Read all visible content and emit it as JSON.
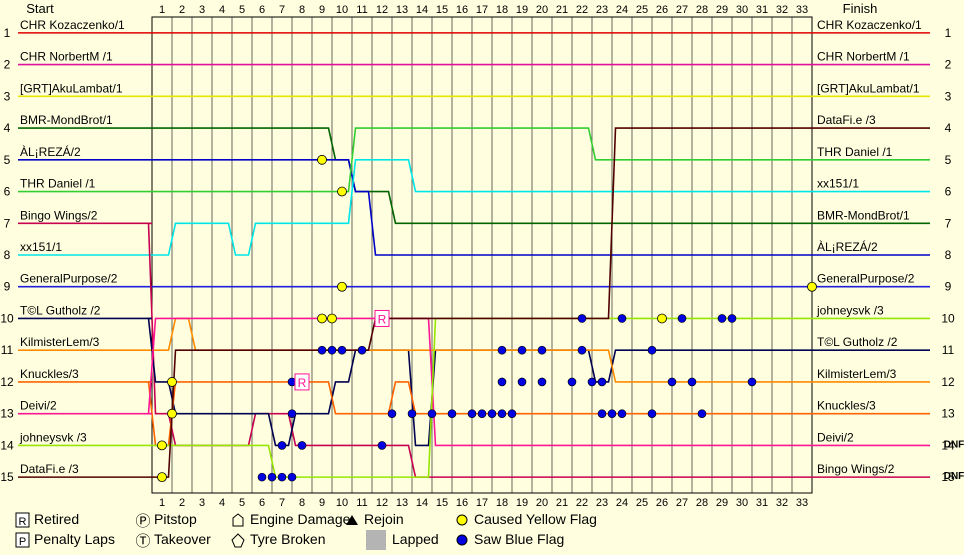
{
  "chart_data": {
    "type": "line",
    "subtype": "race-lap-position-chart",
    "headers": {
      "start": "Start",
      "finish": "Finish"
    },
    "laps": [
      1,
      2,
      3,
      4,
      5,
      6,
      7,
      8,
      9,
      10,
      11,
      12,
      13,
      14,
      15,
      16,
      17,
      18,
      19,
      20,
      21,
      22,
      23,
      24,
      25,
      26,
      27,
      28,
      29,
      30,
      31,
      32,
      33
    ],
    "positions": [
      1,
      2,
      3,
      4,
      5,
      6,
      7,
      8,
      9,
      10,
      11,
      12,
      13,
      14,
      15
    ],
    "start_labels": [
      "CHR Kozaczenko/1",
      "CHR NorbertM /1",
      "[GRT]AkuLambat/1",
      "BMR-MondBrot/1",
      "ÀL¡REZÁ/2",
      "THR Daniel /1",
      "Bingo Wings/2",
      "xx151/1",
      "GeneralPurpose/2",
      "T©L Gutholz /2",
      "KilmisterLem/3",
      "Knuckles/3",
      "Deivi/2",
      "johneysvk /3",
      "DataFi.e /3"
    ],
    "finish_labels": [
      "CHR Kozaczenko/1",
      "CHR NorbertM /1",
      "[GRT]AkuLambat/1",
      "DataFi.e /3",
      "THR Daniel /1",
      "xx151/1",
      "BMR-MondBrot/1",
      "ÀL¡REZÁ/2",
      "GeneralPurpose/2",
      "johneysvk /3",
      "T©L Gutholz /2",
      "KilmisterLem/3",
      "Knuckles/3",
      "Deivi/2",
      "Bingo Wings/2"
    ],
    "finish_status": [
      "",
      "",
      "",
      "",
      "",
      "",
      "",
      "",
      "",
      "",
      "",
      "",
      "",
      "DNF",
      "DNF"
    ],
    "series": [
      {
        "name": "CHR Kozaczenko/1",
        "color": "#e00000",
        "pos": [
          1,
          1,
          1,
          1,
          1,
          1,
          1,
          1,
          1,
          1,
          1,
          1,
          1,
          1,
          1,
          1,
          1,
          1,
          1,
          1,
          1,
          1,
          1,
          1,
          1,
          1,
          1,
          1,
          1,
          1,
          1,
          1,
          1,
          1
        ]
      },
      {
        "name": "CHR NorbertM /1",
        "color": "#e0109a",
        "pos": [
          2,
          2,
          2,
          2,
          2,
          2,
          2,
          2,
          2,
          2,
          2,
          2,
          2,
          2,
          2,
          2,
          2,
          2,
          2,
          2,
          2,
          2,
          2,
          2,
          2,
          2,
          2,
          2,
          2,
          2,
          2,
          2,
          2,
          2
        ]
      },
      {
        "name": "[GRT]AkuLambat/1",
        "color": "#e6e600",
        "pos": [
          3,
          3,
          3,
          3,
          3,
          3,
          3,
          3,
          3,
          3,
          3,
          3,
          3,
          3,
          3,
          3,
          3,
          3,
          3,
          3,
          3,
          3,
          3,
          3,
          3,
          3,
          3,
          3,
          3,
          3,
          3,
          3,
          3,
          3
        ]
      },
      {
        "name": "BMR-MondBrot/1",
        "color": "#006400",
        "pos": [
          4,
          4,
          4,
          4,
          4,
          4,
          4,
          4,
          4,
          4,
          5,
          6,
          6,
          7,
          7,
          7,
          7,
          7,
          7,
          7,
          7,
          7,
          7,
          7,
          7,
          7,
          7,
          7,
          7,
          7,
          7,
          7,
          7,
          7
        ]
      },
      {
        "name": "ÀL¡REZÁ/2",
        "color": "#0000c8",
        "pos": [
          5,
          5,
          5,
          5,
          5,
          5,
          5,
          5,
          5,
          5,
          5,
          6,
          8,
          8,
          8,
          8,
          8,
          8,
          8,
          8,
          8,
          8,
          8,
          8,
          8,
          8,
          8,
          8,
          8,
          8,
          8,
          8,
          8,
          8
        ]
      },
      {
        "name": "THR Daniel /1",
        "color": "#32cd32",
        "pos": [
          6,
          6,
          6,
          6,
          6,
          6,
          6,
          6,
          6,
          6,
          6,
          4,
          4,
          4,
          4,
          4,
          4,
          4,
          4,
          4,
          4,
          4,
          4,
          5,
          5,
          5,
          5,
          5,
          5,
          5,
          5,
          5,
          5,
          5
        ]
      },
      {
        "name": "Bingo Wings/2",
        "color": "#c80050",
        "pos": [
          7,
          13,
          14,
          14,
          14,
          14,
          13,
          13,
          14,
          14,
          14,
          14,
          14,
          14,
          15,
          15,
          15,
          15,
          15,
          15,
          15,
          15,
          15,
          15,
          15,
          15,
          15,
          15,
          15,
          15,
          15,
          15,
          15,
          15
        ]
      },
      {
        "name": "xx151/1",
        "color": "#00e6e6",
        "pos": [
          8,
          8,
          7,
          7,
          7,
          8,
          7,
          7,
          7,
          7,
          7,
          5,
          5,
          5,
          6,
          6,
          6,
          6,
          6,
          6,
          6,
          6,
          6,
          6,
          6,
          6,
          6,
          6,
          6,
          6,
          6,
          6,
          6,
          6
        ]
      },
      {
        "name": "GeneralPurpose/2",
        "color": "#1e1edc",
        "pos": [
          9,
          9,
          9,
          9,
          9,
          9,
          9,
          9,
          9,
          9,
          9,
          9,
          9,
          9,
          9,
          9,
          9,
          9,
          9,
          9,
          9,
          9,
          9,
          9,
          9,
          9,
          9,
          9,
          9,
          9,
          9,
          9,
          9,
          9
        ]
      },
      {
        "name": "T©L Gutholz /2",
        "color": "#000050",
        "pos": [
          10,
          12,
          13,
          13,
          13,
          13,
          13,
          14,
          13,
          13,
          12,
          11,
          11,
          11,
          14,
          11,
          11,
          11,
          11,
          11,
          11,
          11,
          11,
          12,
          11,
          11,
          11,
          11,
          11,
          11,
          11,
          11,
          11,
          11
        ]
      },
      {
        "name": "KilmisterLem/3",
        "color": "#ff8c00",
        "pos": [
          11,
          11,
          10,
          11,
          11,
          11,
          11,
          11,
          11,
          11,
          11,
          11,
          11,
          11,
          11,
          11,
          11,
          11,
          11,
          11,
          11,
          11,
          11,
          11,
          12,
          12,
          12,
          12,
          12,
          12,
          12,
          12,
          12,
          12
        ]
      },
      {
        "name": "Knuckles/3",
        "color": "#ff6400",
        "pos": [
          12,
          14,
          12,
          12,
          12,
          12,
          12,
          12,
          12,
          12,
          13,
          13,
          13,
          12,
          13,
          13,
          13,
          13,
          13,
          13,
          13,
          13,
          13,
          13,
          13,
          13,
          13,
          13,
          13,
          13,
          13,
          13,
          13,
          13
        ]
      },
      {
        "name": "Deivi/2",
        "color": "#ff1493",
        "pos": [
          13,
          10,
          10,
          10,
          10,
          10,
          10,
          10,
          10,
          10,
          10,
          10,
          10,
          10,
          10,
          14,
          14,
          14,
          14,
          14,
          14,
          14,
          14,
          14,
          14,
          14,
          14,
          14,
          14,
          14,
          14,
          14,
          14,
          14
        ]
      },
      {
        "name": "johneysvk /3",
        "color": "#96e600",
        "pos": [
          14,
          14,
          14,
          14,
          14,
          14,
          14,
          15,
          15,
          15,
          15,
          15,
          15,
          15,
          15,
          10,
          10,
          10,
          10,
          10,
          10,
          10,
          10,
          10,
          10,
          10,
          10,
          10,
          10,
          10,
          10,
          10,
          10,
          10
        ]
      },
      {
        "name": "DataFi.e /3",
        "color": "#500000",
        "pos": [
          15,
          15,
          11,
          11,
          11,
          11,
          11,
          11,
          11,
          11,
          11,
          11,
          10,
          10,
          10,
          10,
          10,
          10,
          10,
          10,
          10,
          10,
          10,
          10,
          4,
          4,
          4,
          4,
          4,
          4,
          4,
          4,
          4,
          4
        ]
      }
    ],
    "lapped_regions": [
      {
        "from_lap": 5.5,
        "to_lap": 31.5,
        "from_pos": 14.5,
        "to_pos": 15.5
      },
      {
        "from_lap": 7.5,
        "to_lap": 31.5,
        "from_pos": 11.5,
        "to_pos": 14.5
      },
      {
        "from_lap": 8.5,
        "to_lap": 31.5,
        "from_pos": 10.5,
        "to_pos": 11.5
      },
      {
        "from_lap": 12.5,
        "to_lap": 31.5,
        "from_pos": 9.5,
        "to_pos": 10.5
      }
    ],
    "yellow_flags": [
      [
        1,
        12
      ],
      [
        1,
        13
      ],
      [
        0.5,
        14
      ],
      [
        0.5,
        15
      ],
      [
        9,
        10
      ],
      [
        8.5,
        5
      ],
      [
        9.5,
        6
      ],
      [
        9.5,
        9
      ],
      [
        8.5,
        10
      ],
      [
        25.5,
        10
      ],
      [
        33,
        9
      ]
    ],
    "blue_flags": [
      [
        21.5,
        10
      ],
      [
        23.5,
        10
      ],
      [
        26.5,
        10
      ],
      [
        28.5,
        10
      ],
      [
        29,
        10
      ],
      [
        8.5,
        11
      ],
      [
        9,
        11
      ],
      [
        9.5,
        11
      ],
      [
        10.5,
        11
      ],
      [
        17.5,
        11
      ],
      [
        18.5,
        11
      ],
      [
        19.5,
        11
      ],
      [
        21.5,
        11
      ],
      [
        25,
        11
      ],
      [
        7,
        12
      ],
      [
        17.5,
        12
      ],
      [
        18.5,
        12
      ],
      [
        19.5,
        12
      ],
      [
        21,
        12
      ],
      [
        22,
        12
      ],
      [
        22.5,
        12
      ],
      [
        26,
        12
      ],
      [
        27,
        12
      ],
      [
        30,
        12
      ],
      [
        7,
        13
      ],
      [
        12,
        13
      ],
      [
        13,
        13
      ],
      [
        14,
        13
      ],
      [
        15,
        13
      ],
      [
        16,
        13
      ],
      [
        16.5,
        13
      ],
      [
        17,
        13
      ],
      [
        17.5,
        13
      ],
      [
        18,
        13
      ],
      [
        22.5,
        13
      ],
      [
        23,
        13
      ],
      [
        23.5,
        13
      ],
      [
        25,
        13
      ],
      [
        27.5,
        13
      ],
      [
        6.5,
        14
      ],
      [
        7.5,
        14
      ],
      [
        11.5,
        14
      ],
      [
        5.5,
        15
      ],
      [
        6,
        15
      ],
      [
        6.5,
        15
      ],
      [
        7,
        15
      ]
    ],
    "retired_markers": [
      [
        7.5,
        12
      ],
      [
        11.5,
        10
      ]
    ],
    "legend": [
      {
        "symbol": "R",
        "label": "Retired"
      },
      {
        "symbol": "P",
        "label": "Penalty Laps"
      },
      {
        "symbol": "Ⓟ",
        "label": "Pitstop"
      },
      {
        "symbol": "Ⓣ",
        "label": "Takeover"
      },
      {
        "symbol": "engine",
        "label": "Engine Damage"
      },
      {
        "symbol": "tyre",
        "label": "Tyre Broken"
      },
      {
        "symbol": "▲",
        "label": "Rejoin"
      },
      {
        "symbol": "lapped",
        "label": "Lapped"
      },
      {
        "symbol": "yellow",
        "label": "Caused Yellow Flag"
      },
      {
        "symbol": "blue",
        "label": "Saw Blue Flag"
      }
    ]
  }
}
